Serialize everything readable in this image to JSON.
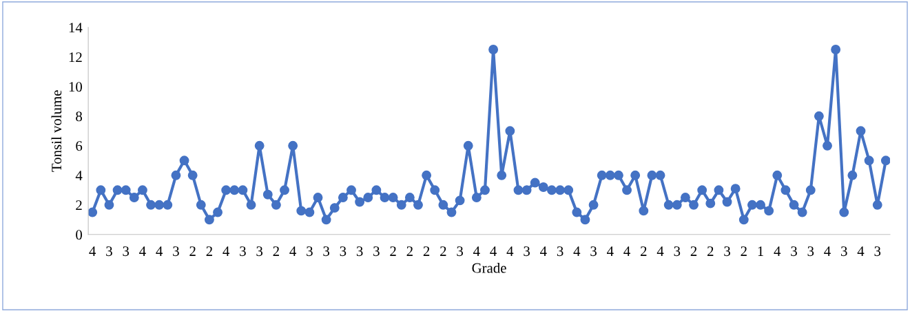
{
  "chart_data": {
    "type": "line",
    "xlabel": "Grade",
    "ylabel": "Tonsil volume",
    "categories": [
      "4",
      null,
      "3",
      null,
      "3",
      null,
      "4",
      null,
      "4",
      null,
      "3",
      null,
      "2",
      null,
      "2",
      null,
      "4",
      null,
      "3",
      null,
      "3",
      null,
      "2",
      null,
      "4",
      null,
      "3",
      null,
      "3",
      null,
      "3",
      null,
      "3",
      null,
      "3",
      null,
      "2",
      null,
      "2",
      null,
      "2",
      null,
      "2",
      null,
      "3",
      null,
      "4",
      null,
      "4",
      null,
      "4",
      null,
      "3",
      null,
      "4",
      null,
      "3",
      null,
      "4",
      null,
      "3",
      null,
      "4",
      null,
      "4",
      null,
      "2",
      null,
      "4",
      null,
      "3",
      null,
      "2",
      null,
      "2",
      null,
      "3",
      null,
      "2",
      null,
      "1",
      null,
      "4",
      null,
      "3",
      null,
      "3",
      null,
      "4",
      null,
      "3",
      null,
      "4",
      null,
      "3",
      null
    ],
    "series": [
      {
        "color": "#4472c4",
        "values": [
          1.5,
          3,
          2,
          3,
          3,
          2.5,
          3,
          2,
          2,
          2,
          4,
          5,
          4,
          2,
          1,
          1.5,
          3,
          3,
          3,
          2,
          6,
          2.7,
          2,
          3,
          6,
          1.6,
          1.5,
          2.5,
          1,
          1.8,
          2.5,
          3,
          2.2,
          2.5,
          3,
          2.5,
          2.5,
          2,
          2.5,
          2,
          4,
          3,
          2,
          1.5,
          2.3,
          6,
          2.5,
          3,
          12.5,
          4,
          7,
          3,
          3,
          3.5,
          3.2,
          3,
          3,
          3,
          1.5,
          1,
          2,
          4,
          4,
          4,
          3,
          4,
          1.6,
          4,
          4,
          2,
          2,
          2.5,
          2,
          3,
          2.1,
          3,
          2.2,
          3.1,
          1,
          2,
          2,
          1.6,
          4,
          3,
          2,
          1.5,
          3,
          8,
          6,
          12.5,
          1.5,
          4,
          7,
          5,
          2,
          5
        ]
      }
    ],
    "ylim": [
      0,
      14
    ],
    "yticks": [
      0,
      2,
      4,
      6,
      8,
      10,
      12,
      14
    ],
    "grid": false,
    "legend": false,
    "marker": "circle",
    "line_style": "solid"
  }
}
